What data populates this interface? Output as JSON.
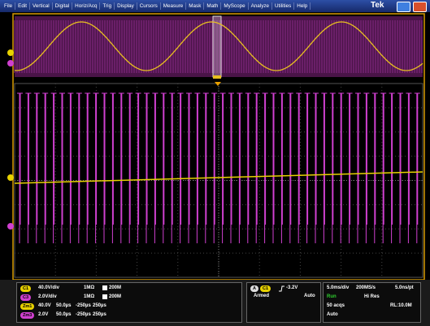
{
  "menu": [
    "File",
    "Edit",
    "Vertical",
    "Digital",
    "Horiz/Acq",
    "Trig",
    "Display",
    "Cursors",
    "Measure",
    "Mask",
    "Math",
    "MyScope",
    "Analyze",
    "Utilities",
    "Help"
  ],
  "brand": "Tek",
  "channels": [
    {
      "badge": "C1",
      "scale": "40.0V/div",
      "impedance": "1MΩ",
      "bandwidth": "200M"
    },
    {
      "badge": "C3",
      "scale": "2.0V/div",
      "impedance": "1MΩ",
      "bandwidth": "200M"
    }
  ],
  "zooms": [
    {
      "badge": "Zm1",
      "scale": "40.0V",
      "position": "50.0µs",
      "start": "-250µs",
      "end": "250µs"
    },
    {
      "badge": "Zm3",
      "scale": "2.0V",
      "position": "50.0µs",
      "start": "-250µs",
      "end": "250µs"
    }
  ],
  "trigger": {
    "letter": "A",
    "source": "C1",
    "level": "-3.2V",
    "state": "Armed",
    "mode": "Auto"
  },
  "acquisition": {
    "timebase": "5.0ms/div",
    "sample_rate": "200MS/s",
    "resolution": "5.0ns/pt",
    "status": "Run",
    "mode": "Hi Res",
    "acqs": "50 acqs",
    "record_length": "RL:10.0M",
    "trigger_mode": "Auto"
  }
}
